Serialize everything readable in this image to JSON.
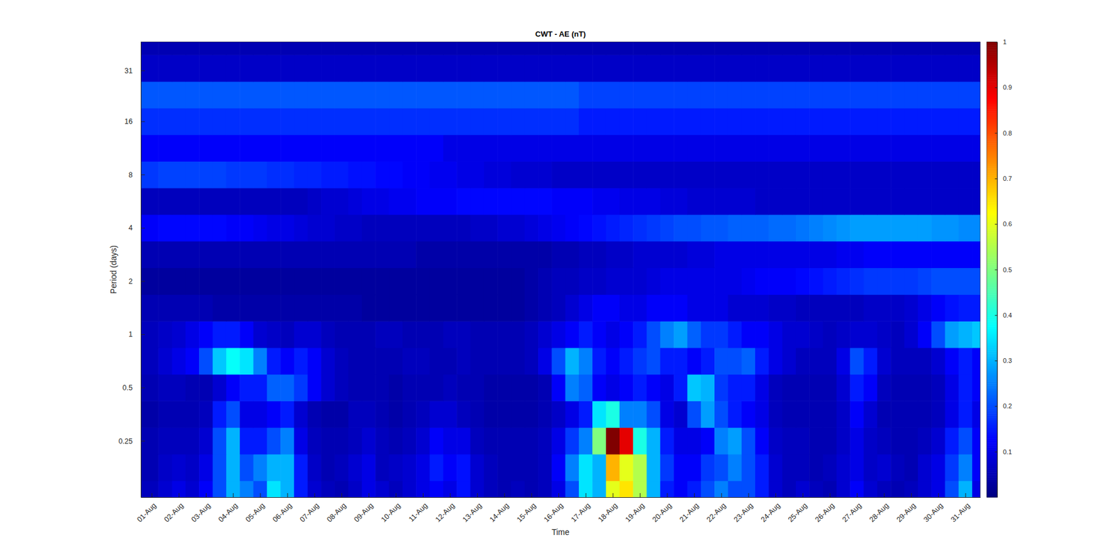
{
  "chart_data": {
    "type": "heatmap",
    "title": "CWT - AE (nT)",
    "x_label": "Time",
    "y_label": "Period (days)",
    "log": "y",
    "xlim": [
      -0.4,
      30.55
    ],
    "ylim": [
      0.12,
      45
    ],
    "xticks": [
      {
        "value": 0,
        "label": "01-Aug"
      },
      {
        "value": 1,
        "label": "02-Aug"
      },
      {
        "value": 2,
        "label": "03-Aug"
      },
      {
        "value": 3,
        "label": "04-Aug"
      },
      {
        "value": 4,
        "label": "05-Aug"
      },
      {
        "value": 5,
        "label": "06-Aug"
      },
      {
        "value": 6,
        "label": "07-Aug"
      },
      {
        "value": 7,
        "label": "08-Aug"
      },
      {
        "value": 8,
        "label": "09-Aug"
      },
      {
        "value": 9,
        "label": "10-Aug"
      },
      {
        "value": 10,
        "label": "11-Aug"
      },
      {
        "value": 11,
        "label": "12-Aug"
      },
      {
        "value": 12,
        "label": "13-Aug"
      },
      {
        "value": 13,
        "label": "14-Aug"
      },
      {
        "value": 14,
        "label": "15-Aug"
      },
      {
        "value": 15,
        "label": "16-Aug"
      },
      {
        "value": 16,
        "label": "17-Aug"
      },
      {
        "value": 17,
        "label": "18-Aug"
      },
      {
        "value": 18,
        "label": "19-Aug"
      },
      {
        "value": 19,
        "label": "20-Aug"
      },
      {
        "value": 20,
        "label": "21-Aug"
      },
      {
        "value": 21,
        "label": "22-Aug"
      },
      {
        "value": 22,
        "label": "23-Aug"
      },
      {
        "value": 23,
        "label": "24-Aug"
      },
      {
        "value": 24,
        "label": "25-Aug"
      },
      {
        "value": 25,
        "label": "26-Aug"
      },
      {
        "value": 26,
        "label": "27-Aug"
      },
      {
        "value": 27,
        "label": "28-Aug"
      },
      {
        "value": 28,
        "label": "29-Aug"
      },
      {
        "value": 29,
        "label": "30-Aug"
      },
      {
        "value": 30,
        "label": "31-Aug"
      }
    ],
    "yticks": [
      0.25,
      0.5,
      1,
      2,
      4,
      8,
      16,
      31
    ],
    "colorbar_range": [
      0,
      1
    ],
    "colorbar_ticks": [
      0.1,
      0.2,
      0.3,
      0.4,
      0.5,
      0.6,
      0.7,
      0.8,
      0.9,
      1
    ],
    "x": [
      0,
      0.5,
      1,
      1.5,
      2,
      2.5,
      3,
      3.5,
      4,
      4.5,
      5,
      5.5,
      6,
      6.5,
      7,
      7.5,
      8,
      8.5,
      9,
      9.5,
      10,
      10.5,
      11,
      11.5,
      12,
      12.5,
      13,
      13.5,
      14,
      14.5,
      15,
      15.5,
      16,
      16.5,
      17,
      17.5,
      18,
      18.5,
      19,
      19.5,
      20,
      20.5,
      21,
      21.5,
      22,
      22.5,
      23,
      23.5,
      24,
      24.5,
      25,
      25.5,
      26,
      26.5,
      27,
      27.5,
      28,
      28.5,
      29,
      29.5,
      30,
      30.5
    ],
    "y": [
      0.125,
      0.177,
      0.25,
      0.354,
      0.5,
      0.707,
      1,
      1.41,
      2,
      2.83,
      4,
      5.66,
      8,
      11.3,
      16,
      22.6,
      32,
      45.3
    ],
    "z": [
      [
        0.06,
        0.08,
        0.1,
        0.08,
        0.12,
        0.2,
        0.3,
        0.25,
        0.2,
        0.35,
        0.3,
        0.15,
        0.08,
        0.06,
        0.05,
        0.07,
        0.1,
        0.08,
        0.06,
        0.08,
        0.1,
        0.12,
        0.1,
        0.14,
        0.08,
        0.06,
        0.05,
        0.06,
        0.05,
        0.06,
        0.1,
        0.2,
        0.35,
        0.3,
        0.6,
        0.65,
        0.55,
        0.3,
        0.15,
        0.12,
        0.15,
        0.2,
        0.25,
        0.2,
        0.2,
        0.15,
        0.08,
        0.06,
        0.08,
        0.06,
        0.05,
        0.08,
        0.12,
        0.08,
        0.06,
        0.05,
        0.06,
        0.08,
        0.1,
        0.2,
        0.3,
        0.1
      ],
      [
        0.05,
        0.07,
        0.08,
        0.07,
        0.1,
        0.2,
        0.3,
        0.2,
        0.25,
        0.3,
        0.3,
        0.15,
        0.07,
        0.05,
        0.06,
        0.08,
        0.1,
        0.06,
        0.07,
        0.08,
        0.1,
        0.15,
        0.12,
        0.14,
        0.08,
        0.06,
        0.05,
        0.05,
        0.05,
        0.06,
        0.12,
        0.25,
        0.35,
        0.3,
        0.7,
        0.6,
        0.55,
        0.3,
        0.18,
        0.12,
        0.12,
        0.18,
        0.2,
        0.25,
        0.2,
        0.15,
        0.08,
        0.06,
        0.06,
        0.05,
        0.06,
        0.08,
        0.1,
        0.07,
        0.08,
        0.06,
        0.05,
        0.08,
        0.1,
        0.18,
        0.25,
        0.12
      ],
      [
        0.05,
        0.06,
        0.06,
        0.06,
        0.08,
        0.2,
        0.3,
        0.15,
        0.15,
        0.2,
        0.25,
        0.1,
        0.06,
        0.05,
        0.05,
        0.06,
        0.08,
        0.06,
        0.05,
        0.06,
        0.08,
        0.12,
        0.1,
        0.1,
        0.06,
        0.05,
        0.05,
        0.05,
        0.05,
        0.06,
        0.1,
        0.18,
        0.25,
        0.5,
        1,
        0.9,
        0.4,
        0.3,
        0.15,
        0.1,
        0.1,
        0.12,
        0.25,
        0.28,
        0.2,
        0.12,
        0.07,
        0.06,
        0.06,
        0.05,
        0.05,
        0.07,
        0.1,
        0.07,
        0.06,
        0.05,
        0.05,
        0.06,
        0.08,
        0.15,
        0.2,
        0.12
      ],
      [
        0.04,
        0.05,
        0.05,
        0.05,
        0.06,
        0.15,
        0.2,
        0.1,
        0.1,
        0.12,
        0.15,
        0.08,
        0.05,
        0.04,
        0.04,
        0.06,
        0.06,
        0.05,
        0.04,
        0.05,
        0.06,
        0.08,
        0.08,
        0.06,
        0.05,
        0.04,
        0.04,
        0.04,
        0.04,
        0.05,
        0.07,
        0.1,
        0.15,
        0.35,
        0.4,
        0.25,
        0.25,
        0.2,
        0.1,
        0.08,
        0.2,
        0.28,
        0.2,
        0.15,
        0.12,
        0.1,
        0.06,
        0.05,
        0.05,
        0.05,
        0.05,
        0.07,
        0.12,
        0.08,
        0.05,
        0.05,
        0.05,
        0.05,
        0.06,
        0.1,
        0.15,
        0.1
      ],
      [
        0.05,
        0.06,
        0.06,
        0.05,
        0.05,
        0.08,
        0.12,
        0.15,
        0.15,
        0.22,
        0.22,
        0.18,
        0.12,
        0.08,
        0.06,
        0.05,
        0.05,
        0.05,
        0.04,
        0.05,
        0.05,
        0.05,
        0.06,
        0.05,
        0.05,
        0.04,
        0.04,
        0.04,
        0.04,
        0.05,
        0.12,
        0.25,
        0.22,
        0.12,
        0.1,
        0.12,
        0.15,
        0.12,
        0.1,
        0.15,
        0.32,
        0.3,
        0.18,
        0.15,
        0.15,
        0.1,
        0.06,
        0.05,
        0.05,
        0.05,
        0.05,
        0.08,
        0.15,
        0.12,
        0.06,
        0.05,
        0.05,
        0.05,
        0.06,
        0.1,
        0.15,
        0.12
      ],
      [
        0.06,
        0.08,
        0.1,
        0.12,
        0.2,
        0.32,
        0.38,
        0.35,
        0.25,
        0.15,
        0.12,
        0.15,
        0.12,
        0.08,
        0.06,
        0.05,
        0.05,
        0.05,
        0.05,
        0.06,
        0.06,
        0.05,
        0.05,
        0.06,
        0.05,
        0.05,
        0.05,
        0.05,
        0.06,
        0.1,
        0.2,
        0.3,
        0.25,
        0.15,
        0.12,
        0.15,
        0.18,
        0.2,
        0.15,
        0.15,
        0.12,
        0.15,
        0.2,
        0.2,
        0.22,
        0.15,
        0.1,
        0.08,
        0.06,
        0.06,
        0.06,
        0.1,
        0.2,
        0.15,
        0.08,
        0.06,
        0.06,
        0.06,
        0.08,
        0.12,
        0.15,
        0.12
      ],
      [
        0.06,
        0.07,
        0.08,
        0.1,
        0.12,
        0.15,
        0.15,
        0.12,
        0.08,
        0.07,
        0.06,
        0.08,
        0.08,
        0.06,
        0.05,
        0.05,
        0.05,
        0.06,
        0.06,
        0.05,
        0.05,
        0.05,
        0.06,
        0.06,
        0.05,
        0.05,
        0.05,
        0.05,
        0.06,
        0.08,
        0.1,
        0.12,
        0.15,
        0.12,
        0.1,
        0.12,
        0.15,
        0.2,
        0.25,
        0.28,
        0.22,
        0.18,
        0.18,
        0.15,
        0.12,
        0.12,
        0.1,
        0.08,
        0.08,
        0.07,
        0.06,
        0.07,
        0.08,
        0.08,
        0.07,
        0.06,
        0.08,
        0.12,
        0.2,
        0.28,
        0.3,
        0.32
      ],
      [
        0.05,
        0.05,
        0.05,
        0.05,
        0.05,
        0.04,
        0.04,
        0.04,
        0.04,
        0.04,
        0.04,
        0.04,
        0.04,
        0.04,
        0.04,
        0.04,
        0.03,
        0.03,
        0.03,
        0.03,
        0.03,
        0.03,
        0.03,
        0.03,
        0.03,
        0.03,
        0.03,
        0.03,
        0.04,
        0.05,
        0.06,
        0.08,
        0.1,
        0.12,
        0.12,
        0.1,
        0.1,
        0.12,
        0.12,
        0.12,
        0.1,
        0.1,
        0.1,
        0.08,
        0.08,
        0.08,
        0.07,
        0.07,
        0.06,
        0.06,
        0.06,
        0.06,
        0.06,
        0.07,
        0.07,
        0.07,
        0.08,
        0.1,
        0.12,
        0.14,
        0.15,
        0.15
      ],
      [
        0.03,
        0.03,
        0.03,
        0.03,
        0.03,
        0.03,
        0.03,
        0.03,
        0.03,
        0.03,
        0.03,
        0.03,
        0.03,
        0.03,
        0.03,
        0.03,
        0.03,
        0.03,
        0.03,
        0.03,
        0.03,
        0.03,
        0.03,
        0.03,
        0.03,
        0.03,
        0.03,
        0.03,
        0.04,
        0.05,
        0.06,
        0.06,
        0.07,
        0.07,
        0.08,
        0.08,
        0.08,
        0.09,
        0.1,
        0.1,
        0.1,
        0.1,
        0.1,
        0.1,
        0.11,
        0.12,
        0.12,
        0.12,
        0.13,
        0.14,
        0.15,
        0.16,
        0.17,
        0.18,
        0.18,
        0.18,
        0.18,
        0.19,
        0.2,
        0.2,
        0.2,
        0.2
      ],
      [
        0.05,
        0.05,
        0.05,
        0.05,
        0.05,
        0.05,
        0.05,
        0.05,
        0.05,
        0.05,
        0.05,
        0.05,
        0.05,
        0.05,
        0.05,
        0.05,
        0.05,
        0.05,
        0.05,
        0.05,
        0.04,
        0.04,
        0.04,
        0.04,
        0.04,
        0.04,
        0.04,
        0.04,
        0.04,
        0.04,
        0.05,
        0.05,
        0.06,
        0.06,
        0.07,
        0.07,
        0.08,
        0.08,
        0.08,
        0.08,
        0.09,
        0.09,
        0.1,
        0.1,
        0.1,
        0.1,
        0.1,
        0.1,
        0.1,
        0.1,
        0.1,
        0.11,
        0.11,
        0.12,
        0.12,
        0.12,
        0.12,
        0.12,
        0.12,
        0.12,
        0.12,
        0.12
      ],
      [
        0.12,
        0.13,
        0.13,
        0.13,
        0.13,
        0.13,
        0.12,
        0.12,
        0.11,
        0.1,
        0.1,
        0.09,
        0.08,
        0.08,
        0.07,
        0.07,
        0.06,
        0.06,
        0.06,
        0.06,
        0.06,
        0.06,
        0.06,
        0.06,
        0.07,
        0.07,
        0.08,
        0.08,
        0.09,
        0.1,
        0.11,
        0.12,
        0.13,
        0.14,
        0.15,
        0.16,
        0.17,
        0.18,
        0.19,
        0.2,
        0.2,
        0.21,
        0.21,
        0.22,
        0.22,
        0.22,
        0.23,
        0.23,
        0.24,
        0.25,
        0.26,
        0.27,
        0.28,
        0.28,
        0.28,
        0.28,
        0.28,
        0.28,
        0.27,
        0.27,
        0.26,
        0.26
      ],
      [
        0.06,
        0.06,
        0.06,
        0.06,
        0.06,
        0.06,
        0.06,
        0.06,
        0.06,
        0.06,
        0.06,
        0.06,
        0.07,
        0.08,
        0.08,
        0.09,
        0.1,
        0.1,
        0.11,
        0.11,
        0.12,
        0.12,
        0.12,
        0.13,
        0.13,
        0.13,
        0.13,
        0.13,
        0.13,
        0.13,
        0.12,
        0.12,
        0.12,
        0.11,
        0.11,
        0.1,
        0.1,
        0.1,
        0.09,
        0.09,
        0.08,
        0.08,
        0.08,
        0.08,
        0.08,
        0.07,
        0.07,
        0.07,
        0.07,
        0.07,
        0.07,
        0.07,
        0.07,
        0.07,
        0.07,
        0.07,
        0.07,
        0.07,
        0.07,
        0.07,
        0.07,
        0.07
      ],
      [
        0.18,
        0.19,
        0.19,
        0.19,
        0.19,
        0.19,
        0.18,
        0.18,
        0.18,
        0.17,
        0.17,
        0.16,
        0.16,
        0.15,
        0.15,
        0.14,
        0.14,
        0.13,
        0.13,
        0.12,
        0.12,
        0.11,
        0.11,
        0.1,
        0.1,
        0.09,
        0.09,
        0.08,
        0.08,
        0.08,
        0.07,
        0.07,
        0.07,
        0.07,
        0.07,
        0.07,
        0.07,
        0.07,
        0.07,
        0.07,
        0.07,
        0.07,
        0.07,
        0.07,
        0.07,
        0.07,
        0.07,
        0.07,
        0.07,
        0.07,
        0.07,
        0.07,
        0.07,
        0.07,
        0.07,
        0.07,
        0.07,
        0.07,
        0.07,
        0.07,
        0.07,
        0.07
      ],
      [
        0.12,
        0.12,
        0.12,
        0.12,
        0.12,
        0.12,
        0.12,
        0.12,
        0.12,
        0.12,
        0.12,
        0.12,
        0.12,
        0.12,
        0.12,
        0.12,
        0.12,
        0.12,
        0.12,
        0.12,
        0.12,
        0.12,
        0.1,
        0.1,
        0.1,
        0.1,
        0.1,
        0.1,
        0.1,
        0.1,
        0.1,
        0.1,
        0.1,
        0.1,
        0.1,
        0.1,
        0.1,
        0.1,
        0.1,
        0.1,
        0.1,
        0.1,
        0.1,
        0.1,
        0.1,
        0.1,
        0.1,
        0.1,
        0.1,
        0.1,
        0.1,
        0.1,
        0.1,
        0.1,
        0.1,
        0.1,
        0.1,
        0.1,
        0.1,
        0.1,
        0.1,
        0.1
      ],
      [
        0.17,
        0.17,
        0.17,
        0.17,
        0.17,
        0.17,
        0.17,
        0.17,
        0.17,
        0.17,
        0.17,
        0.17,
        0.17,
        0.17,
        0.17,
        0.17,
        0.17,
        0.17,
        0.17,
        0.17,
        0.17,
        0.17,
        0.17,
        0.17,
        0.17,
        0.17,
        0.17,
        0.17,
        0.17,
        0.17,
        0.17,
        0.17,
        0.15,
        0.15,
        0.15,
        0.15,
        0.15,
        0.15,
        0.15,
        0.15,
        0.15,
        0.15,
        0.15,
        0.15,
        0.15,
        0.15,
        0.15,
        0.15,
        0.15,
        0.15,
        0.15,
        0.15,
        0.15,
        0.15,
        0.15,
        0.15,
        0.15,
        0.15,
        0.15,
        0.15,
        0.15,
        0.15
      ],
      [
        0.21,
        0.21,
        0.21,
        0.21,
        0.21,
        0.21,
        0.21,
        0.21,
        0.21,
        0.21,
        0.21,
        0.21,
        0.21,
        0.21,
        0.21,
        0.21,
        0.21,
        0.21,
        0.21,
        0.21,
        0.21,
        0.21,
        0.21,
        0.21,
        0.21,
        0.21,
        0.21,
        0.21,
        0.21,
        0.21,
        0.21,
        0.21,
        0.19,
        0.19,
        0.19,
        0.19,
        0.19,
        0.19,
        0.19,
        0.19,
        0.19,
        0.19,
        0.19,
        0.19,
        0.19,
        0.19,
        0.19,
        0.19,
        0.19,
        0.19,
        0.19,
        0.19,
        0.19,
        0.19,
        0.19,
        0.19,
        0.19,
        0.19,
        0.19,
        0.19,
        0.19,
        0.19
      ],
      [
        0.07,
        0.07,
        0.07,
        0.07,
        0.07,
        0.07,
        0.07,
        0.07,
        0.07,
        0.07,
        0.07,
        0.07,
        0.07,
        0.07,
        0.07,
        0.07,
        0.07,
        0.07,
        0.07,
        0.07,
        0.07,
        0.07,
        0.07,
        0.07,
        0.07,
        0.07,
        0.07,
        0.07,
        0.07,
        0.07,
        0.07,
        0.07,
        0.07,
        0.07,
        0.07,
        0.07,
        0.07,
        0.07,
        0.07,
        0.07,
        0.07,
        0.07,
        0.07,
        0.07,
        0.07,
        0.07,
        0.07,
        0.07,
        0.07,
        0.07,
        0.07,
        0.07,
        0.07,
        0.07,
        0.07,
        0.07,
        0.07,
        0.07,
        0.07,
        0.07,
        0.07,
        0.07
      ],
      [
        0.05,
        0.05,
        0.05,
        0.05,
        0.05,
        0.05,
        0.05,
        0.05,
        0.05,
        0.05,
        0.05,
        0.05,
        0.05,
        0.05,
        0.05,
        0.05,
        0.05,
        0.05,
        0.05,
        0.05,
        0.05,
        0.05,
        0.05,
        0.05,
        0.05,
        0.05,
        0.05,
        0.05,
        0.05,
        0.05,
        0.05,
        0.05,
        0.05,
        0.05,
        0.05,
        0.05,
        0.05,
        0.05,
        0.05,
        0.05,
        0.05,
        0.05,
        0.05,
        0.05,
        0.05,
        0.05,
        0.05,
        0.05,
        0.05,
        0.05,
        0.05,
        0.05,
        0.05,
        0.05,
        0.05,
        0.05,
        0.05,
        0.05,
        0.05,
        0.05,
        0.05,
        0.05
      ]
    ]
  }
}
